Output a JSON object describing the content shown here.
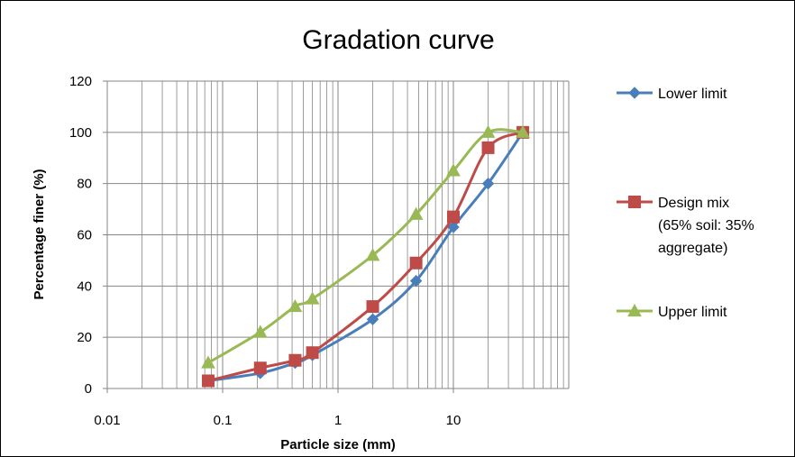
{
  "chart_data": {
    "type": "line",
    "title": "Gradation curve",
    "xlabel": "Particle size (mm)",
    "ylabel": "Percentage finer (%)",
    "xscale": "log",
    "xlim": [
      0.01,
      100
    ],
    "ylim": [
      0,
      120
    ],
    "x_ticks": [
      "0.01",
      "0.1",
      "1",
      "10"
    ],
    "y_ticks": [
      "0",
      "20",
      "40",
      "60",
      "80",
      "100",
      "120"
    ],
    "grid": true,
    "legend_position": "right",
    "smooth": true,
    "series": [
      {
        "name": "Lower limit",
        "legend_lines": [
          "Lower limit"
        ],
        "color": "#4a7ebb",
        "marker": "diamond",
        "x": [
          0.075,
          0.212,
          0.425,
          0.6,
          2,
          4.75,
          10,
          20,
          40
        ],
        "y": [
          3,
          6,
          10,
          13,
          27,
          42,
          63,
          80,
          100
        ]
      },
      {
        "name": "Design mix (65% soil: 35% aggregate)",
        "legend_lines": [
          "Design mix",
          "(65% soil: 35%",
          "aggregate)"
        ],
        "color": "#be4b48",
        "marker": "square",
        "x": [
          0.075,
          0.212,
          0.425,
          0.6,
          2,
          4.75,
          10,
          20,
          40
        ],
        "y": [
          3,
          8,
          11,
          14,
          32,
          49,
          67,
          94,
          100
        ]
      },
      {
        "name": "Upper limit",
        "legend_lines": [
          "Upper limit"
        ],
        "color": "#98b954",
        "marker": "triangle",
        "x": [
          0.075,
          0.212,
          0.425,
          0.6,
          2,
          4.75,
          10,
          20,
          40
        ],
        "y": [
          10,
          22,
          32,
          35,
          52,
          68,
          85,
          100,
          100
        ]
      }
    ]
  }
}
